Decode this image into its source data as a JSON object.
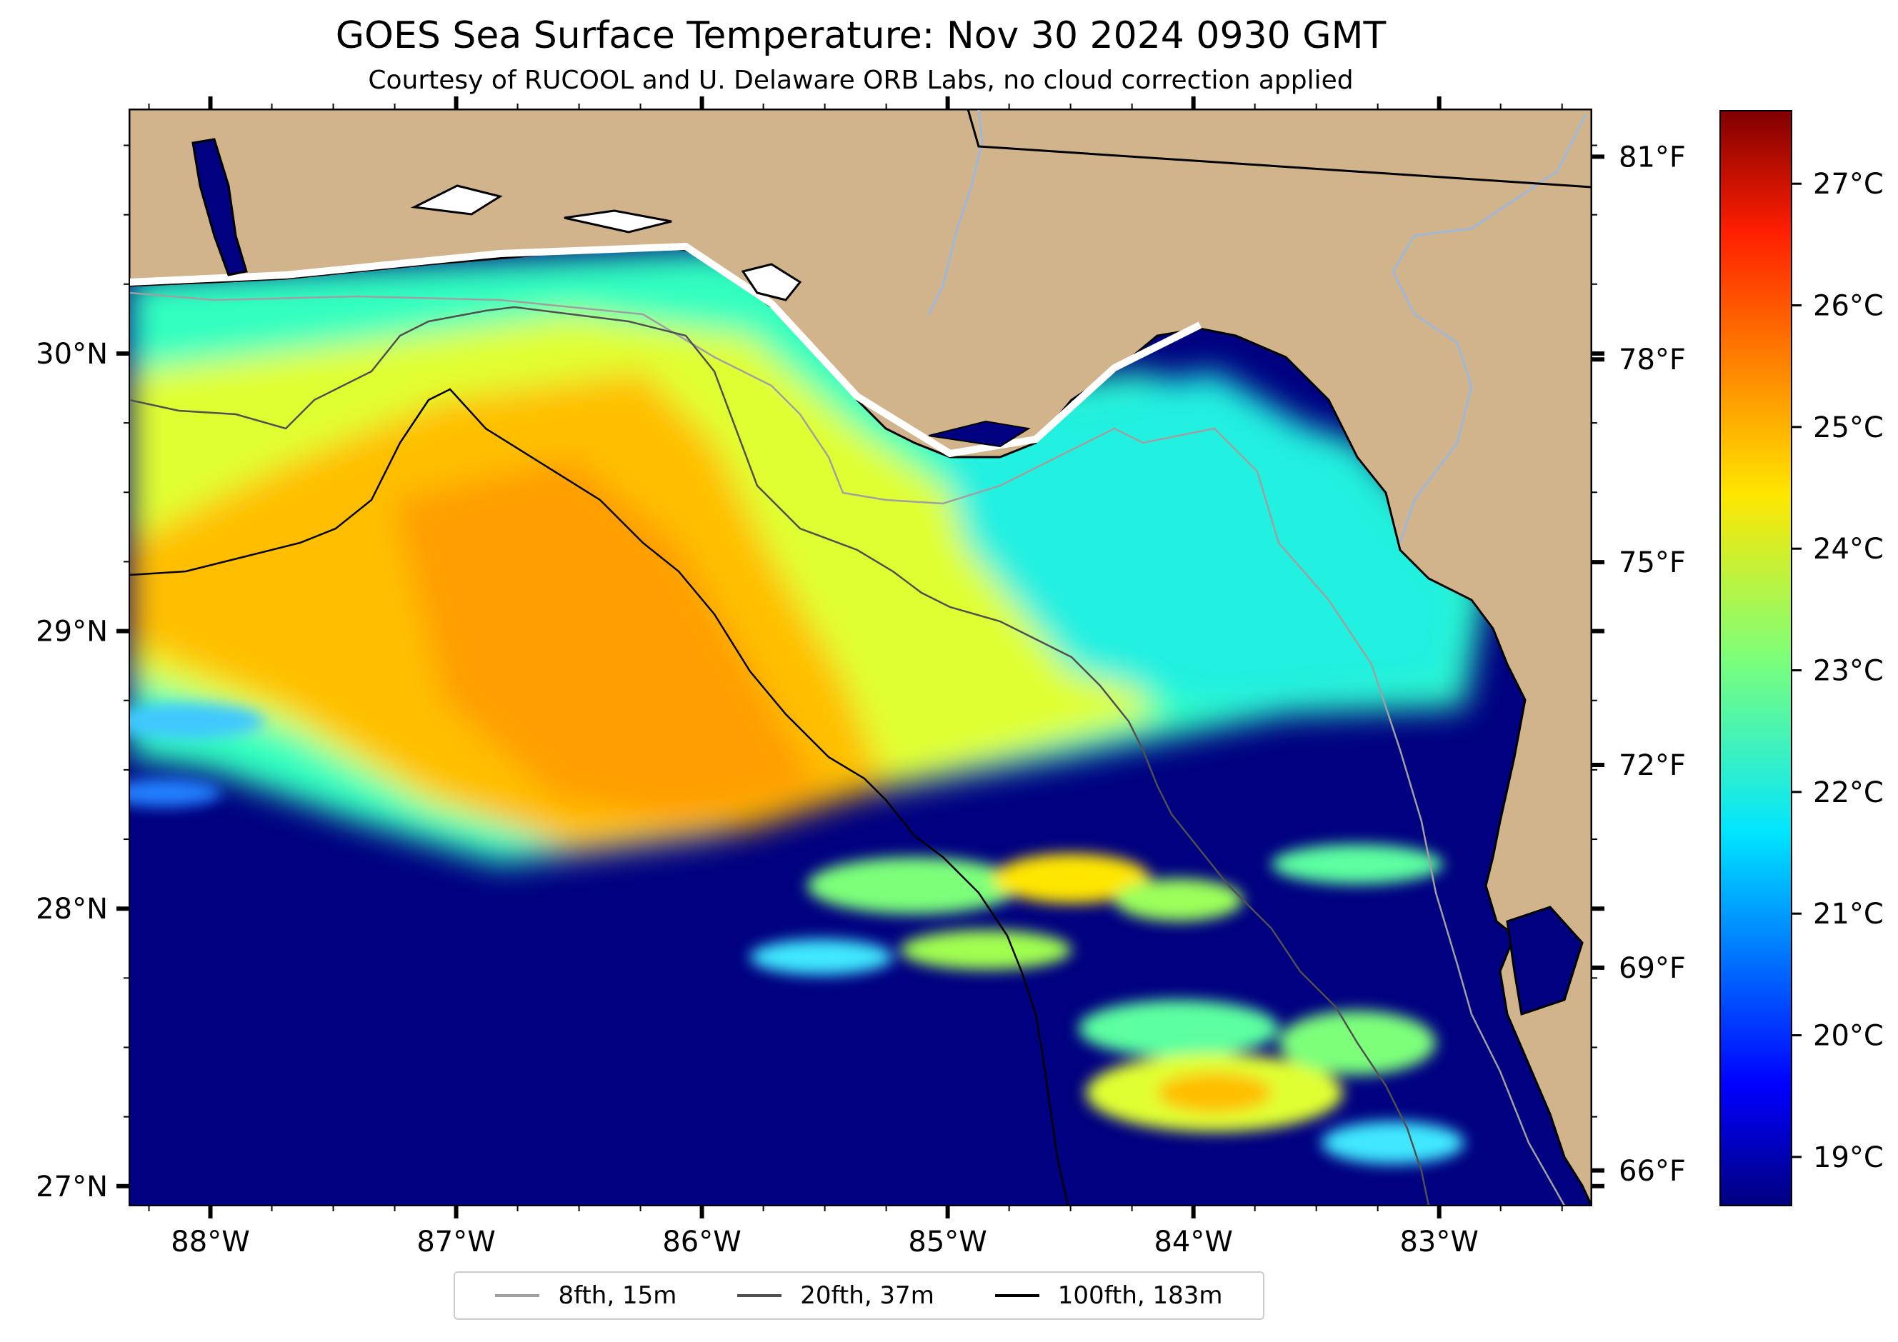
{
  "title": "GOES Sea Surface Temperature: Nov 30 2024 0930 GMT",
  "subtitle": "Courtesy of RUCOOL and U. Delaware ORB Labs, no cloud correction applied",
  "map": {
    "lon_range": [
      -88.33,
      -82.38
    ],
    "lat_range": [
      26.93,
      30.88
    ],
    "land_color": "#D2B48C",
    "cloud_color": "#000080",
    "coast_color": "#000000",
    "state_border_color": "#000000",
    "river_color": "#A0B8D8",
    "no_data_color": "#FFFFFF",
    "lon_ticks": [
      {
        "value": -88,
        "label": "88°W"
      },
      {
        "value": -87,
        "label": "87°W"
      },
      {
        "value": -86,
        "label": "86°W"
      },
      {
        "value": -85,
        "label": "85°W"
      },
      {
        "value": -84,
        "label": "84°W"
      },
      {
        "value": -83,
        "label": "83°W"
      }
    ],
    "lat_ticks": [
      {
        "value": 27,
        "label": "27°N"
      },
      {
        "value": 28,
        "label": "28°N"
      },
      {
        "value": 29,
        "label": "29°N"
      },
      {
        "value": 30,
        "label": "30°N"
      }
    ],
    "temp_f_ticks": [
      {
        "value": 66,
        "label": "66°F"
      },
      {
        "value": 69,
        "label": "69°F"
      },
      {
        "value": 72,
        "label": "72°F"
      },
      {
        "value": 75,
        "label": "75°F"
      },
      {
        "value": 78,
        "label": "78°F"
      },
      {
        "value": 81,
        "label": "81°F"
      }
    ]
  },
  "colorbar": {
    "range_c": [
      18.6,
      27.6
    ],
    "colormap": "jet",
    "ticks": [
      {
        "value": 19,
        "label": "19°C"
      },
      {
        "value": 20,
        "label": "20°C"
      },
      {
        "value": 21,
        "label": "21°C"
      },
      {
        "value": 22,
        "label": "22°C"
      },
      {
        "value": 23,
        "label": "23°C"
      },
      {
        "value": 24,
        "label": "24°C"
      },
      {
        "value": 25,
        "label": "25°C"
      },
      {
        "value": 26,
        "label": "26°C"
      },
      {
        "value": 27,
        "label": "27°C"
      }
    ]
  },
  "legend": [
    {
      "label": "8fth, 15m",
      "color": "#A0A0A0"
    },
    {
      "label": "20fth, 37m",
      "color": "#505050"
    },
    {
      "label": "100fth, 183m",
      "color": "#000000"
    }
  ]
}
